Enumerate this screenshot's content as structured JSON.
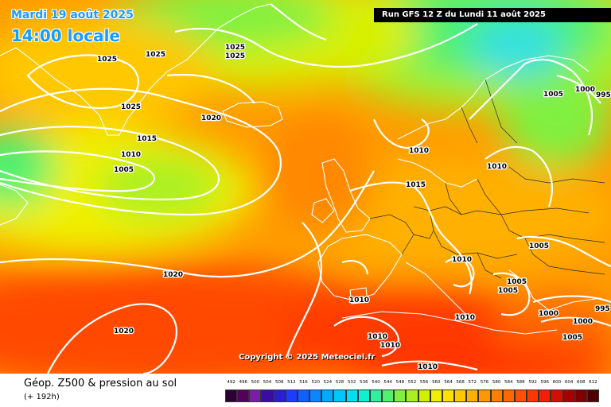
{
  "header": {
    "date": "Mardi 19 août 2025",
    "time": "14:00 locale",
    "run": "Run GFS 12 Z du Lundi 11 août 2025"
  },
  "copyright": "Copyright © 2025 Meteociel.fr",
  "footer": {
    "title": "Géop. Z500 & pression au sol",
    "forecast_hour": "(+ 192h)"
  },
  "isobar_labels": [
    "1025",
    "1025",
    "1025",
    "1025",
    "1025",
    "1020",
    "1015",
    "1010",
    "1005",
    "1020",
    "1020",
    "1010",
    "1015",
    "1010",
    "1005",
    "1000",
    "995",
    "1010",
    "1005",
    "1005",
    "1005",
    "1010",
    "1010",
    "1010",
    "1010",
    "1000",
    "1000",
    "1005",
    "1010",
    "995"
  ],
  "scale": {
    "values": [
      "492",
      "496",
      "500",
      "504",
      "508",
      "512",
      "516",
      "520",
      "524",
      "528",
      "532",
      "536",
      "540",
      "544",
      "548",
      "552",
      "556",
      "560",
      "564",
      "568",
      "572",
      "576",
      "580",
      "584",
      "588",
      "592",
      "596",
      "600",
      "604",
      "608",
      "612"
    ],
    "colors": [
      "#2d0033",
      "#56005e",
      "#7b1fa2",
      "#3a0ca3",
      "#2a1fd0",
      "#1e3cff",
      "#1060ff",
      "#0a86ff",
      "#00aaff",
      "#00c8ff",
      "#00e0f0",
      "#10f0d0",
      "#30f0a0",
      "#50f070",
      "#80f040",
      "#a8f020",
      "#d0f000",
      "#f0f000",
      "#ffe000",
      "#ffc800",
      "#ffb000",
      "#ff9800",
      "#ff8000",
      "#ff6800",
      "#ff5000",
      "#ff3800",
      "#f02000",
      "#d01000",
      "#a80000",
      "#800000",
      "#500000"
    ]
  }
}
